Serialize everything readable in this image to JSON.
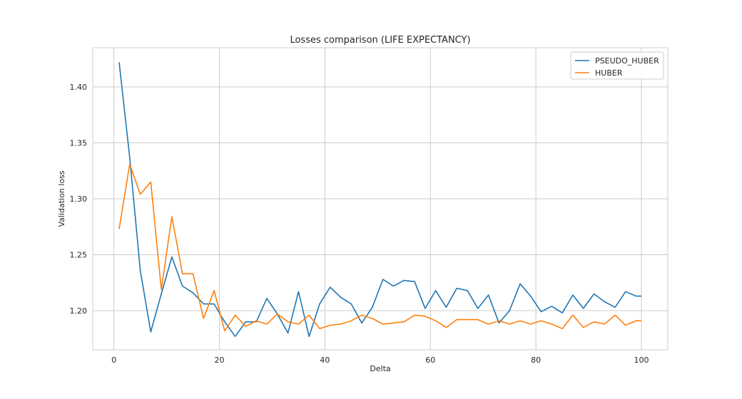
{
  "chart_data": {
    "type": "line",
    "title": "Losses comparison (LIFE EXPECTANCY)",
    "xlabel": "Delta",
    "ylabel": "Validation loss",
    "xlim": [
      -4,
      105
    ],
    "ylim": [
      1.165,
      1.435
    ],
    "xticks": [
      0,
      20,
      40,
      60,
      80,
      100
    ],
    "yticks": [
      1.2,
      1.25,
      1.3,
      1.35,
      1.4
    ],
    "grid": true,
    "legend_position": "top-right",
    "x": [
      1,
      3,
      5,
      7,
      9,
      11,
      13,
      15,
      17,
      19,
      21,
      23,
      25,
      27,
      29,
      31,
      33,
      35,
      37,
      39,
      41,
      43,
      45,
      47,
      49,
      51,
      53,
      55,
      57,
      59,
      61,
      63,
      65,
      67,
      69,
      71,
      73,
      75,
      77,
      79,
      81,
      83,
      85,
      87,
      89,
      91,
      93,
      95,
      97,
      99,
      100
    ],
    "series": [
      {
        "name": "PSEUDO_HUBER",
        "color": "#1f77b4",
        "values": [
          1.422,
          1.337,
          1.236,
          1.181,
          1.215,
          1.248,
          1.222,
          1.216,
          1.206,
          1.206,
          1.19,
          1.177,
          1.19,
          1.19,
          1.211,
          1.197,
          1.18,
          1.217,
          1.177,
          1.206,
          1.221,
          1.212,
          1.206,
          1.189,
          1.203,
          1.228,
          1.222,
          1.227,
          1.226,
          1.202,
          1.218,
          1.203,
          1.22,
          1.218,
          1.202,
          1.214,
          1.189,
          1.2,
          1.224,
          1.213,
          1.199,
          1.204,
          1.198,
          1.214,
          1.202,
          1.215,
          1.208,
          1.203,
          1.217,
          1.213,
          1.213
        ]
      },
      {
        "name": "HUBER",
        "color": "#ff7f0e",
        "values": [
          1.273,
          1.331,
          1.304,
          1.315,
          1.219,
          1.284,
          1.233,
          1.233,
          1.193,
          1.218,
          1.182,
          1.196,
          1.186,
          1.191,
          1.188,
          1.197,
          1.19,
          1.188,
          1.196,
          1.184,
          1.187,
          1.188,
          1.191,
          1.196,
          1.193,
          1.188,
          1.189,
          1.19,
          1.196,
          1.195,
          1.191,
          1.185,
          1.192,
          1.192,
          1.192,
          1.188,
          1.191,
          1.188,
          1.191,
          1.188,
          1.191,
          1.188,
          1.184,
          1.196,
          1.185,
          1.19,
          1.188,
          1.196,
          1.187,
          1.191,
          1.191
        ]
      }
    ]
  }
}
